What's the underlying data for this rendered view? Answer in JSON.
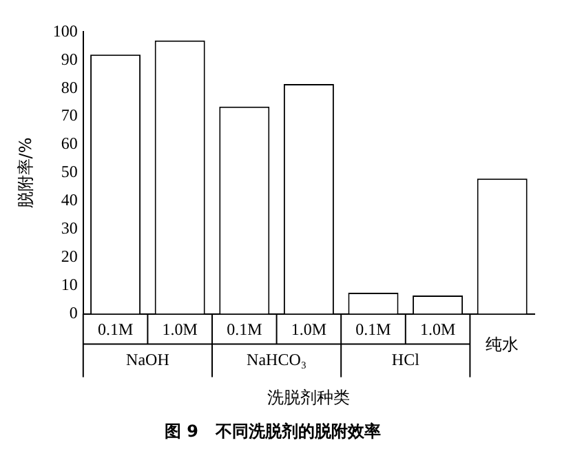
{
  "chart_data": {
    "type": "bar",
    "title": "图 9   不同洗脱剂的脱附效率",
    "xlabel": "洗脱剂种类",
    "ylabel": "脱附率/%",
    "categories": [
      "0.1M",
      "1.0M",
      "0.1M",
      "1.0M",
      "0.1M",
      "1.0M",
      null
    ],
    "values": [
      92,
      97,
      73.5,
      81.5,
      7.5,
      6.5,
      48
    ],
    "color": "#ffffff",
    "ylim": [
      0,
      100
    ],
    "yticks": [
      0,
      10,
      20,
      30,
      40,
      50,
      60,
      70,
      80,
      90,
      100
    ],
    "annotations": [
      "NaOH",
      "NaHCO₃",
      "HCl",
      "纯水"
    ],
    "grid": false,
    "legend": false
  }
}
